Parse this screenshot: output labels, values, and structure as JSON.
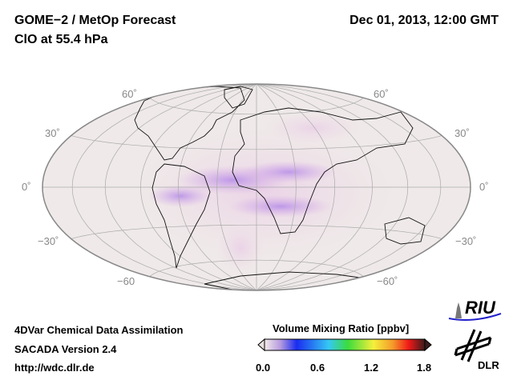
{
  "header": {
    "title": "GOME−2 / MetOp Forecast",
    "subtitle": "ClO at 55.4 hPa",
    "datetime": "Dec 01, 2013, 12:00 GMT"
  },
  "map": {
    "projection": "Hammer-Aitoff (tilted)",
    "lat_labels_left": [
      "60˚",
      "30˚",
      "0˚",
      "−30˚",
      "−60"
    ],
    "lat_labels_right": [
      "60˚",
      "30˚",
      "0˚",
      "−30˚",
      "−60˚"
    ],
    "background_color": "#efe9e9",
    "field_color": "#c98ce6"
  },
  "colorbar": {
    "title": "Volume Mixing Ratio [ppbv]",
    "ticks": [
      "0.0",
      "0.6",
      "1.2",
      "1.8"
    ],
    "range": [
      0.0,
      1.8
    ],
    "colors": [
      "#f4eaea",
      "#b49adf",
      "#1a2cf0",
      "#35c8f5",
      "#3cdc3c",
      "#f5f03c",
      "#f59a2a",
      "#f01818",
      "#3a1c1c"
    ]
  },
  "footer": {
    "line1": "4DVar Chemical Data Assimilation",
    "line2": "SACADA Version 2.4",
    "line3": "http://wdc.dlr.de"
  },
  "logos": {
    "riu": "RIU",
    "dlr": "DLR"
  }
}
